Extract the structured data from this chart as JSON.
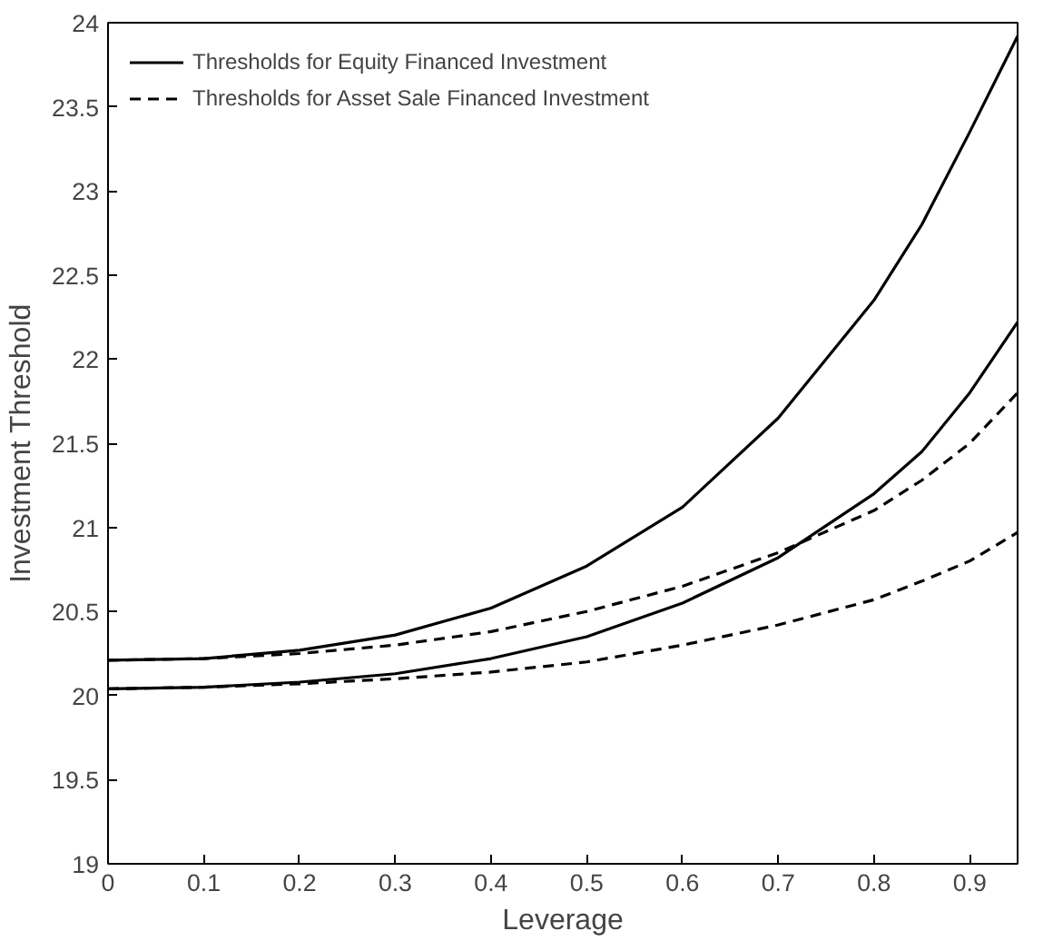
{
  "chart_data": {
    "type": "line",
    "xlabel": "Leverage",
    "ylabel": "Investment Threshold",
    "x": [
      0,
      0.1,
      0.2,
      0.3,
      0.4,
      0.5,
      0.6,
      0.7,
      0.8,
      0.85,
      0.9,
      0.95
    ],
    "series": [
      {
        "name": "Thresholds for Equity Financed Investment",
        "color": "#000000",
        "line_style": "solid",
        "values": [
          20.21,
          20.22,
          20.27,
          20.36,
          20.52,
          20.77,
          21.12,
          21.65,
          22.35,
          22.8,
          23.35,
          23.92
        ]
      },
      {
        "name": "Thresholds for Asset Sale Financed Investment",
        "color": "#000000",
        "line_style": "dashed",
        "values": [
          20.21,
          20.22,
          20.25,
          20.3,
          20.38,
          20.5,
          20.65,
          20.85,
          21.1,
          21.28,
          21.5,
          21.8
        ]
      },
      {
        "color": "#000000",
        "line_style": "solid",
        "values": [
          20.04,
          20.05,
          20.08,
          20.13,
          20.22,
          20.35,
          20.55,
          20.82,
          21.2,
          21.45,
          21.8,
          22.22
        ]
      },
      {
        "color": "#000000",
        "line_style": "dashed",
        "values": [
          20.04,
          20.05,
          20.07,
          20.1,
          20.14,
          20.2,
          20.3,
          20.42,
          20.57,
          20.68,
          20.8,
          20.97
        ]
      }
    ],
    "xlim": [
      0,
      0.95
    ],
    "ylim": [
      19,
      24
    ],
    "xticks": [
      0,
      0.1,
      0.2,
      0.3,
      0.4,
      0.5,
      0.6,
      0.7,
      0.8,
      0.9
    ],
    "yticks": [
      19,
      19.5,
      20,
      20.5,
      21,
      21.5,
      22,
      22.5,
      23,
      23.5,
      24
    ],
    "grid": false,
    "legend": "top left",
    "marker": "none"
  }
}
